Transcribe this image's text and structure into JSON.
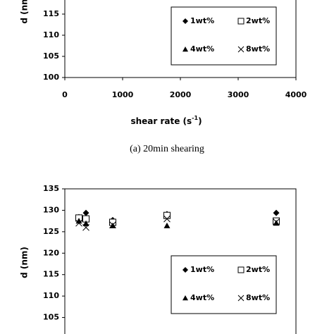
{
  "chart_data": [
    {
      "type": "scatter",
      "ylabel": "d (nm",
      "xlabel": [
        "shear rate (s",
        "-1",
        ")"
      ],
      "caption": "(a) 20min shearing",
      "xlim": [
        0,
        4000
      ],
      "xticks": [
        0,
        1000,
        2000,
        3000,
        4000
      ],
      "ylim": [
        100,
        120
      ],
      "yticks": [
        100,
        105,
        110,
        115
      ],
      "legend": "right",
      "series": [
        {
          "name": "1wt%",
          "marker": "diamond",
          "color": "#000000"
        },
        {
          "name": "2wt%",
          "marker": "square",
          "color": "#000000"
        },
        {
          "name": "4wt%",
          "marker": "triangle",
          "color": "#000000"
        },
        {
          "name": "8wt%",
          "marker": "cross",
          "color": "#000000"
        }
      ]
    },
    {
      "type": "scatter",
      "ylabel": "d (nm)",
      "x": [
        244,
        366,
        829,
        1768,
        3659
      ],
      "xlim": [
        0,
        4000
      ],
      "ylim": [
        100,
        135
      ],
      "yticks": [
        105,
        110,
        115,
        120,
        125,
        130,
        135
      ],
      "legend": "right",
      "series": [
        {
          "name": "1wt%",
          "marker": "diamond",
          "color": "#000000",
          "values": [
            128.4,
            129.4,
            127.7,
            129.1,
            129.4
          ]
        },
        {
          "name": "2wt%",
          "marker": "square",
          "color": "#000000",
          "values": [
            128.2,
            128.0,
            127.2,
            128.8,
            127.5
          ]
        },
        {
          "name": "4wt%",
          "marker": "triangle",
          "color": "#000000",
          "values": [
            127.5,
            126.9,
            126.4,
            126.4,
            127.0
          ]
        },
        {
          "name": "8wt%",
          "marker": "cross",
          "color": "#000000",
          "values": [
            127.0,
            126.0,
            126.6,
            128.0,
            127.3
          ]
        }
      ]
    }
  ]
}
